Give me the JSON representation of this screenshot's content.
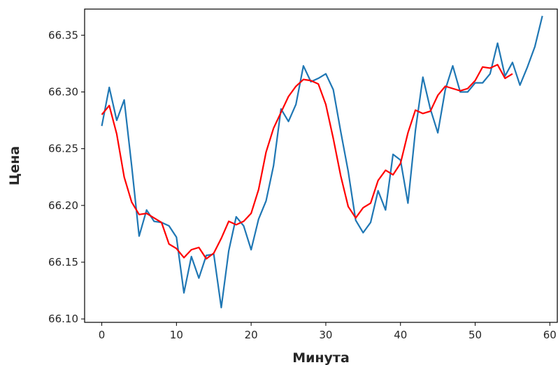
{
  "chart_data": {
    "type": "line",
    "title": "",
    "xlabel": "Минута",
    "ylabel": "Цена",
    "xlim": [
      -2.3,
      61.0
    ],
    "ylim": [
      66.097,
      66.373
    ],
    "xticks": [
      0,
      10,
      20,
      30,
      40,
      50,
      60
    ],
    "yticks": [
      66.1,
      66.15,
      66.2,
      66.25,
      66.3,
      66.35
    ],
    "ytick_labels": [
      "66.10",
      "66.15",
      "66.20",
      "66.25",
      "66.30",
      "66.35"
    ],
    "grid": false,
    "series": [
      {
        "color": "#1f77b4",
        "x": [
          0,
          1,
          2,
          3,
          4,
          5,
          6,
          7,
          8,
          9,
          10,
          11,
          12,
          13,
          14,
          15,
          16,
          17,
          18,
          19,
          20,
          21,
          22,
          23,
          24,
          25,
          26,
          27,
          28,
          29,
          30,
          31,
          32,
          33,
          34,
          35,
          36,
          37,
          38,
          39,
          40,
          41,
          42,
          43,
          44,
          45,
          46,
          47,
          48,
          49,
          50,
          51,
          52,
          53,
          54,
          55,
          56,
          57,
          58,
          59
        ],
        "values": [
          66.27,
          66.304,
          66.275,
          66.293,
          66.235,
          66.173,
          66.196,
          66.186,
          66.185,
          66.182,
          66.172,
          66.123,
          66.155,
          66.136,
          66.156,
          66.157,
          66.11,
          66.16,
          66.19,
          66.182,
          66.161,
          66.188,
          66.204,
          66.235,
          66.285,
          66.274,
          66.289,
          66.323,
          66.309,
          66.312,
          66.316,
          66.302,
          66.265,
          66.23,
          66.187,
          66.176,
          66.185,
          66.213,
          66.196,
          66.245,
          66.24,
          66.202,
          66.266,
          66.313,
          66.285,
          66.264,
          66.302,
          66.323,
          66.3,
          66.3,
          66.308,
          66.308,
          66.316,
          66.343,
          66.314,
          66.326,
          66.306,
          66.322,
          66.34,
          66.367
        ]
      },
      {
        "color": "#ff0000",
        "x": [
          0,
          1,
          2,
          3,
          4,
          5,
          6,
          7,
          8,
          9,
          10,
          11,
          12,
          13,
          14,
          15,
          16,
          17,
          18,
          19,
          20,
          21,
          22,
          23,
          24,
          25,
          26,
          27,
          28,
          29,
          30,
          31,
          32,
          33,
          34,
          35,
          36,
          37,
          38,
          39,
          40,
          41,
          42,
          43,
          44,
          45,
          46,
          47,
          48,
          49,
          50,
          51,
          52,
          53,
          54,
          55
        ],
        "values": [
          66.28,
          66.288,
          66.263,
          66.225,
          66.203,
          66.192,
          66.193,
          66.189,
          66.185,
          66.166,
          66.162,
          66.154,
          66.161,
          66.163,
          66.153,
          66.158,
          66.171,
          66.186,
          66.183,
          66.186,
          66.193,
          66.214,
          66.247,
          66.268,
          66.282,
          66.296,
          66.305,
          66.311,
          66.31,
          66.307,
          66.289,
          66.259,
          66.226,
          66.199,
          66.189,
          66.198,
          66.202,
          66.222,
          66.231,
          66.227,
          66.237,
          66.264,
          66.284,
          66.281,
          66.283,
          66.297,
          66.305,
          66.303,
          66.301,
          66.303,
          66.31,
          66.322,
          66.321,
          66.324,
          66.312,
          66.316
        ]
      }
    ]
  }
}
